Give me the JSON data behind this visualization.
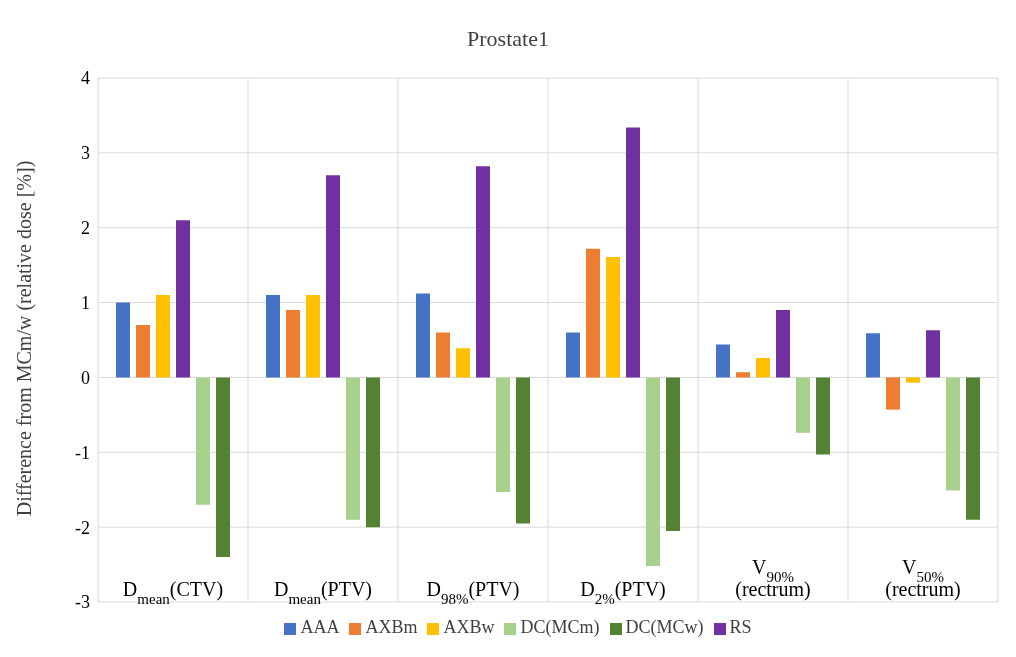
{
  "chart_data": {
    "type": "bar",
    "title": "Prostate1",
    "ylabel": "Difference from MCm/w (relative dose [%])",
    "categories": [
      "D$_{mean}$(CTV)",
      "D$_{mean}$(PTV)",
      "D$_{98%}$(PTV)",
      "D$_{2%}$(PTV)",
      "V$_{90%}$ (rectrum)",
      "V$_{50%}$ (rectrum)"
    ],
    "series": [
      {
        "name": "AAA",
        "color": "#4472c4",
        "values": [
          1.0,
          1.1,
          1.12,
          0.6,
          0.44,
          0.59
        ]
      },
      {
        "name": "AXBm",
        "color": "#ed7d31",
        "values": [
          0.7,
          0.9,
          0.6,
          1.72,
          0.07,
          -0.43
        ]
      },
      {
        "name": "AXBw",
        "color": "#ffc000",
        "values": [
          1.1,
          1.1,
          0.39,
          1.61,
          0.26,
          -0.07
        ]
      },
      {
        "name": "RS",
        "color": "#7030a0",
        "values": [
          2.1,
          2.7,
          2.82,
          3.34,
          0.9,
          0.63
        ]
      },
      {
        "name": "DC(MCm)",
        "color": "#a9d18e",
        "values": [
          -1.7,
          -1.9,
          -1.53,
          -2.52,
          -0.74,
          -1.51
        ]
      },
      {
        "name": "DC(MCw)",
        "color": "#548235",
        "values": [
          -2.4,
          -2.0,
          -1.95,
          -2.05,
          -1.03,
          -1.9
        ]
      }
    ],
    "ylim": [
      -3,
      4
    ],
    "yticks": [
      -3,
      -2,
      -1,
      0,
      1,
      2,
      3,
      4
    ],
    "grid": true,
    "legend": "bottom"
  }
}
